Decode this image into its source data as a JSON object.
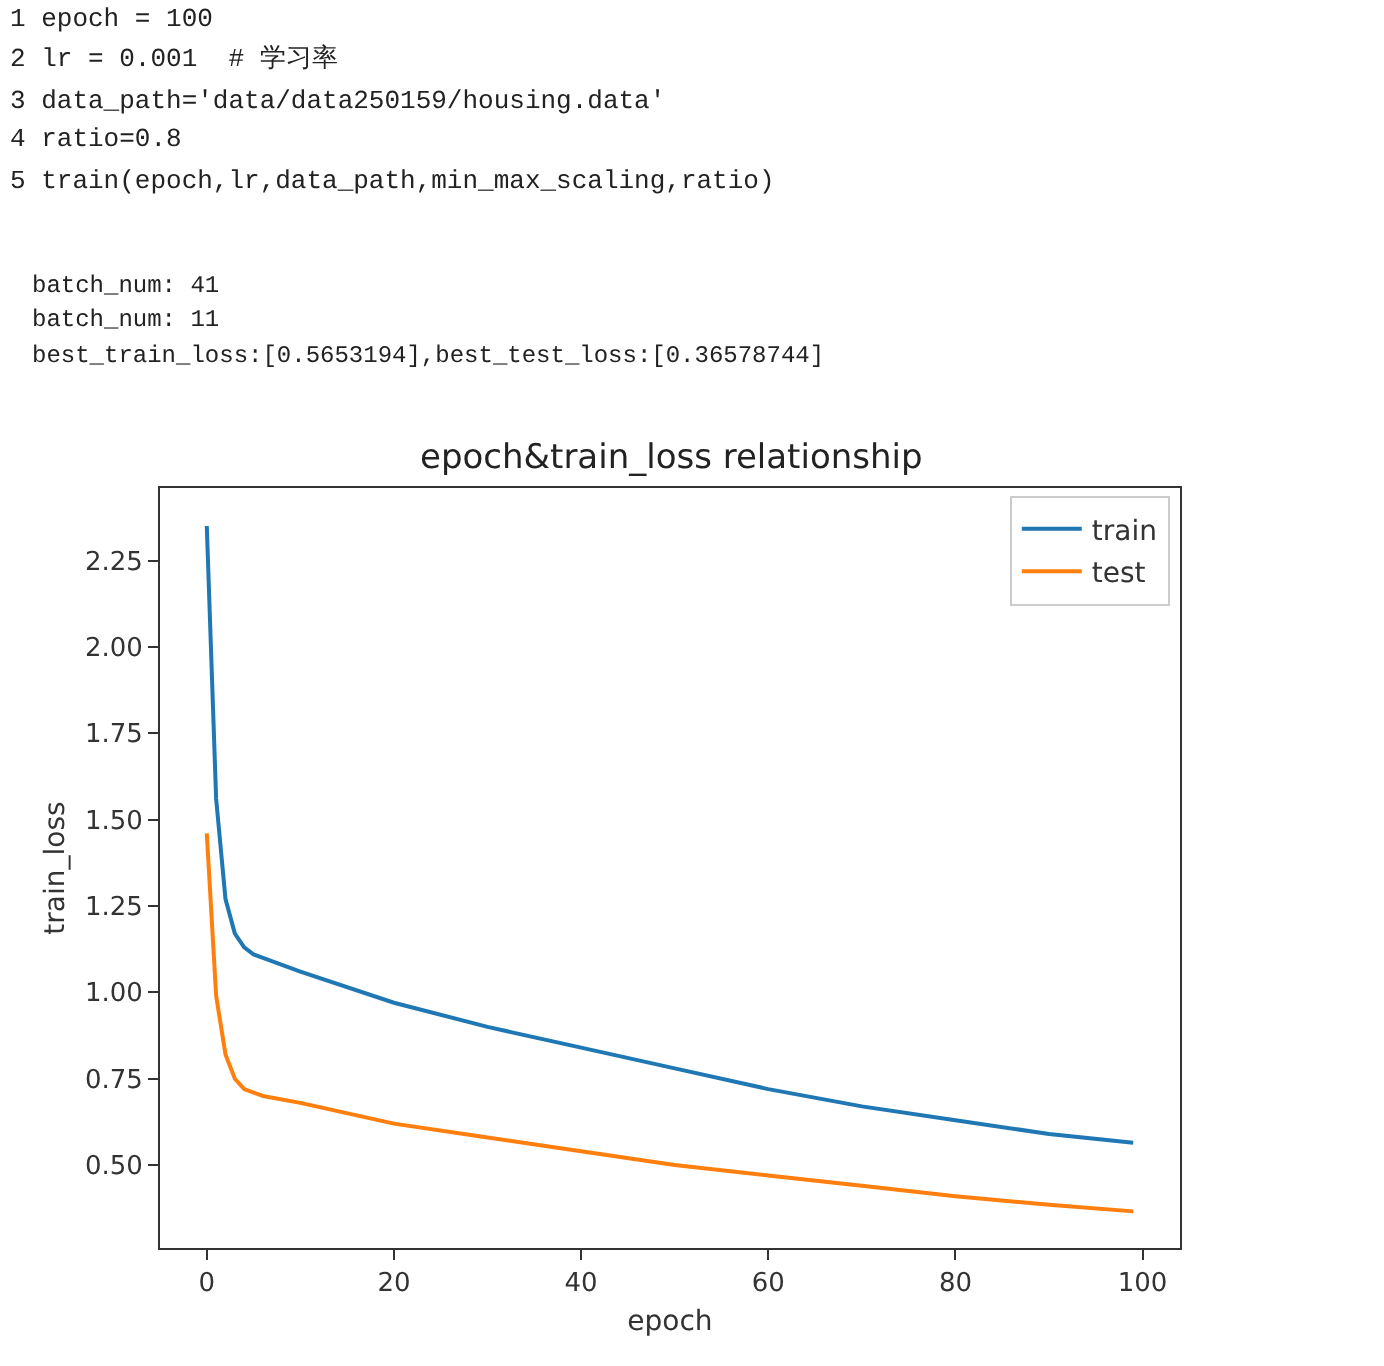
{
  "chart_data": {
    "type": "line",
    "title": "epoch&train_loss relationship",
    "xlabel": "epoch",
    "ylabel": "train_loss",
    "annotations": [
      "1 epoch = 100",
      "2 lr = 0.001  # 学习率",
      "3 data_path='data/data250159/housing.data'",
      "4 ratio=0.8",
      "5 train(epoch,lr,data_path,min_max_scaling,ratio)",
      "batch_num: 41",
      "batch_num: 11",
      "best_train_loss:[0.5653194],best_test_loss:[0.36578744]"
    ],
    "xlim": [
      -5,
      104
    ],
    "xticks": [
      0,
      20,
      40,
      60,
      80,
      100
    ],
    "ylim": [
      0.26,
      2.46
    ],
    "yticks": [
      {
        "value": 0.5,
        "label": "0.50"
      },
      0.75,
      {
        "value": 1.0,
        "label": "1.00"
      },
      1.25,
      {
        "value": 1.5,
        "label": "1.50"
      },
      1.75,
      {
        "value": 2.0,
        "label": "2.00"
      },
      2.25
    ],
    "legend": "top right",
    "series": [
      {
        "name": "train",
        "color": "#1f77b4",
        "x": [
          0,
          1,
          2,
          3,
          4,
          5,
          6,
          10,
          20,
          30,
          40,
          50,
          60,
          70,
          80,
          90,
          99
        ],
        "values": [
          2.35,
          1.56,
          1.27,
          1.17,
          1.13,
          1.11,
          1.1,
          1.06,
          0.97,
          0.9,
          0.84,
          0.78,
          0.72,
          0.67,
          0.63,
          0.59,
          0.565
        ]
      },
      {
        "name": "test",
        "color": "#ff7f0e",
        "x": [
          0,
          1,
          2,
          3,
          4,
          5,
          6,
          10,
          20,
          30,
          40,
          50,
          60,
          70,
          80,
          90,
          99
        ],
        "values": [
          1.46,
          0.99,
          0.82,
          0.75,
          0.72,
          0.71,
          0.7,
          0.68,
          0.62,
          0.58,
          0.54,
          0.5,
          0.47,
          0.44,
          0.41,
          0.385,
          0.366
        ]
      }
    ]
  }
}
